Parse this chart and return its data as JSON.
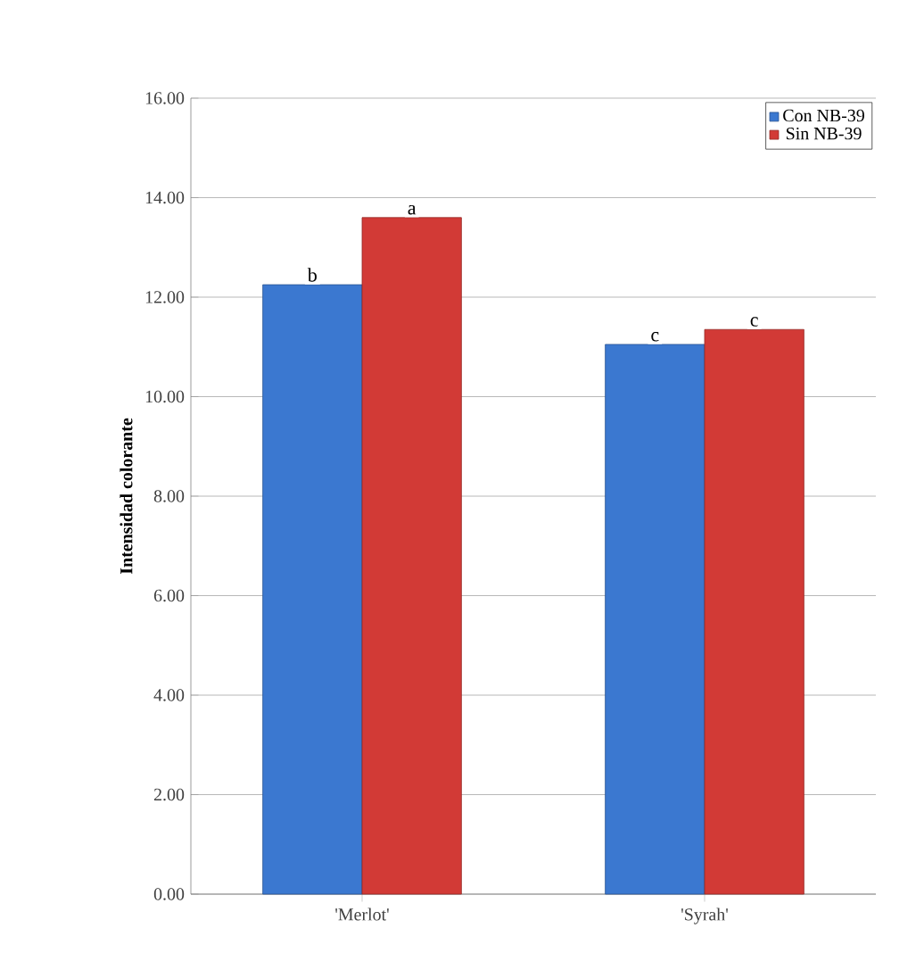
{
  "chart_data": {
    "type": "bar",
    "ylabel": "Intensidad colorante",
    "categories": [
      "'Merlot'",
      "'Syrah'"
    ],
    "series": [
      {
        "name": "Con NB-39",
        "color": "#3b78d0",
        "values": [
          12.25,
          11.05
        ]
      },
      {
        "name": "Sin NB-39",
        "color": "#d23a36",
        "values": [
          13.6,
          11.35
        ]
      }
    ],
    "ylim": [
      0,
      16
    ],
    "yticks": [
      {
        "value": 0,
        "label": "0.00"
      },
      {
        "value": 2,
        "label": "2.00"
      },
      {
        "value": 4,
        "label": "4.00"
      },
      {
        "value": 6,
        "label": "6.00"
      },
      {
        "value": 8,
        "label": "8.00"
      },
      {
        "value": 10,
        "label": "10.00"
      },
      {
        "value": 12,
        "label": "12.00"
      },
      {
        "value": 14,
        "label": "14.00"
      },
      {
        "value": 16,
        "label": "16.00"
      }
    ],
    "annotations": [
      {
        "text": "b",
        "x": "'Merlot'",
        "y": 12.25
      },
      {
        "text": "a",
        "x": "'Merlot'",
        "y": 13.6
      },
      {
        "text": "c",
        "x": "'Syrah'",
        "y": 11.05
      },
      {
        "text": "c",
        "x": "'Syrah'",
        "y": 11.35
      }
    ],
    "grid": "y",
    "legend": "top right"
  }
}
